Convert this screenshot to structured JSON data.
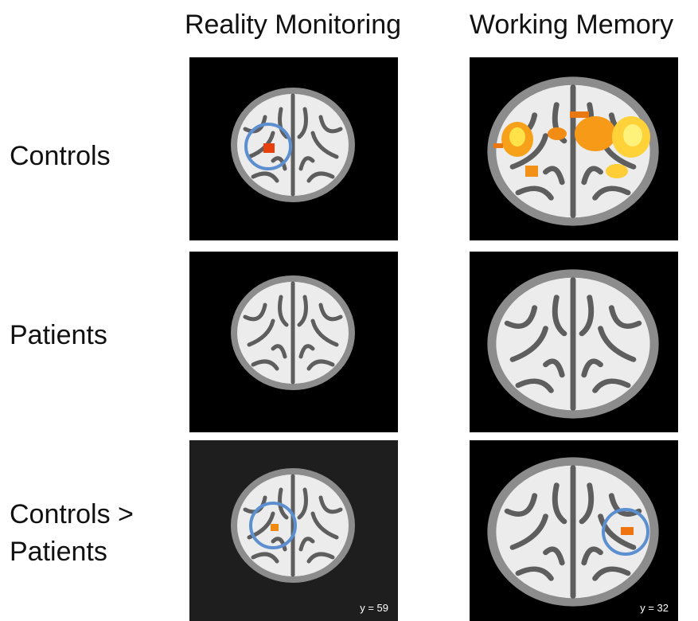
{
  "column_headers": [
    "Reality Monitoring",
    "Working Memory"
  ],
  "row_labels": [
    [
      "Controls"
    ],
    [
      "Patients"
    ],
    [
      "Controls >",
      "Patients"
    ]
  ],
  "slice_labels": [
    "y = 59",
    "y = 32"
  ]
}
